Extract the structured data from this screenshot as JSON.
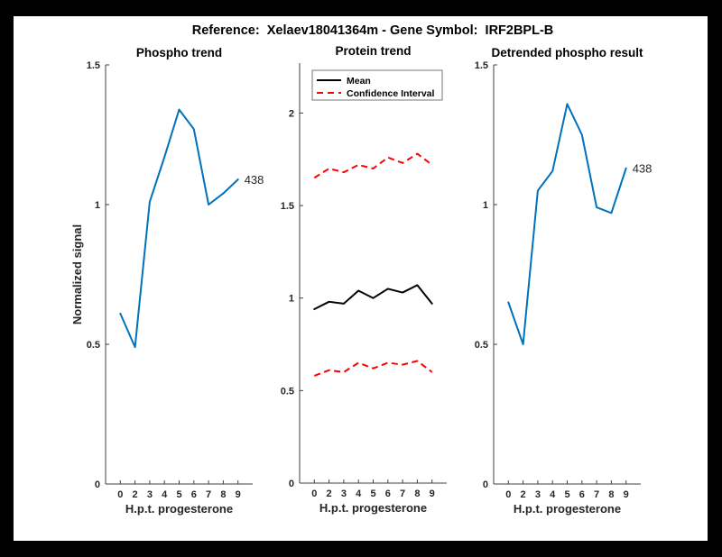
{
  "figure": {
    "title": "Reference:  Xelaev18041364m - Gene Symbol:  IRF2BPL-B",
    "frame_color": "#000000",
    "canvas_color": "#ffffff"
  },
  "colors": {
    "blue": "#0072BD",
    "red": "#ff0000",
    "black": "#000000",
    "axis_text": "#262626",
    "axis_line": "#3f3f3f",
    "legend_border": "#777777"
  },
  "chart_data": [
    {
      "type": "line",
      "title": "Phospho trend",
      "xlabel": "H.p.t. progesterone",
      "ylabel": "Normalized signal",
      "x": [
        1,
        2,
        3,
        4,
        5,
        6,
        7,
        8,
        9
      ],
      "xlim": [
        0,
        10
      ],
      "xticklabels": [
        "0",
        "2",
        "3",
        "4",
        "5",
        "6",
        "7",
        "8",
        "9"
      ],
      "ylim": [
        0,
        1.5
      ],
      "yticks": [
        0,
        0.5,
        1,
        1.5
      ],
      "yticklabels": [
        "0",
        "0.5",
        "1",
        "1.5"
      ],
      "grid": false,
      "legend": null,
      "series": [
        {
          "name": "phospho-signal",
          "color": "blue",
          "dash": "solid",
          "values": [
            0.61,
            0.49,
            1.01,
            1.17,
            1.34,
            1.27,
            1.0,
            1.04,
            1.09
          ],
          "end_label": "438"
        }
      ]
    },
    {
      "type": "line",
      "title": "Protein trend",
      "xlabel": "H.p.t. progesterone",
      "ylabel": "",
      "x": [
        1,
        2,
        3,
        4,
        5,
        6,
        7,
        8,
        9
      ],
      "xlim": [
        0,
        10
      ],
      "xticklabels": [
        "0",
        "2",
        "3",
        "4",
        "5",
        "6",
        "7",
        "8",
        "9"
      ],
      "ylim": [
        0,
        2.27
      ],
      "yticks": [
        0,
        0.5,
        1,
        1.5,
        2
      ],
      "yticklabels": [
        "0",
        "0.5",
        "1",
        "1.5",
        "2"
      ],
      "grid": false,
      "legend": {
        "position": "top-left",
        "entries": [
          {
            "label": "Mean",
            "color": "black",
            "dash": "solid"
          },
          {
            "label": "Confidence Interval",
            "color": "red",
            "dash": "dashed"
          }
        ]
      },
      "series": [
        {
          "name": "mean",
          "color": "black",
          "dash": "solid",
          "values": [
            0.94,
            0.98,
            0.97,
            1.04,
            1.0,
            1.05,
            1.03,
            1.07,
            0.97
          ],
          "end_label": null
        },
        {
          "name": "ci-upper",
          "color": "red",
          "dash": "dashed",
          "values": [
            1.65,
            1.7,
            1.68,
            1.72,
            1.7,
            1.76,
            1.73,
            1.78,
            1.72
          ],
          "end_label": null
        },
        {
          "name": "ci-lower",
          "color": "red",
          "dash": "dashed",
          "values": [
            0.58,
            0.61,
            0.6,
            0.65,
            0.62,
            0.65,
            0.64,
            0.66,
            0.6
          ],
          "end_label": null
        }
      ]
    },
    {
      "type": "line",
      "title": "Detrended phospho result",
      "xlabel": "H.p.t. progesterone",
      "ylabel": "",
      "x": [
        1,
        2,
        3,
        4,
        5,
        6,
        7,
        8,
        9
      ],
      "xlim": [
        0,
        10
      ],
      "xticklabels": [
        "0",
        "2",
        "3",
        "4",
        "5",
        "6",
        "7",
        "8",
        "9"
      ],
      "ylim": [
        0,
        1.5
      ],
      "yticks": [
        0,
        0.5,
        1,
        1.5
      ],
      "yticklabels": [
        "0",
        "0.5",
        "1",
        "1.5"
      ],
      "grid": false,
      "legend": null,
      "series": [
        {
          "name": "detrended-signal",
          "color": "blue",
          "dash": "solid",
          "values": [
            0.65,
            0.5,
            1.05,
            1.12,
            1.36,
            1.25,
            0.99,
            0.97,
            1.13
          ],
          "end_label": "438"
        }
      ]
    }
  ]
}
